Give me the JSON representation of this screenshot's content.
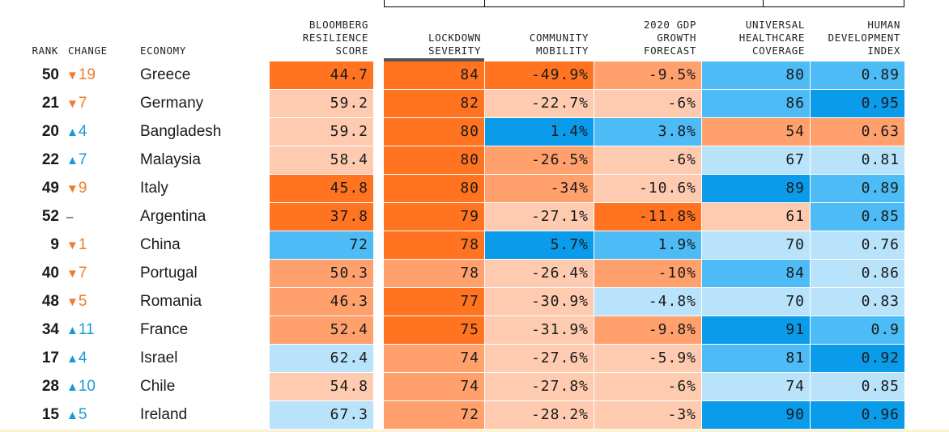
{
  "chart_data": {
    "type": "table",
    "columns": [
      {
        "key": "rank",
        "label": "RANK"
      },
      {
        "key": "change",
        "label": "CHANGE"
      },
      {
        "key": "economy",
        "label": "ECONOMY"
      },
      {
        "key": "score",
        "label": "BLOOMBERG\nRESILIENCE\nSCORE"
      },
      {
        "key": "lockdown",
        "label": "LOCKDOWN\nSEVERITY"
      },
      {
        "key": "mobility",
        "label": "COMMUNITY\nMOBILITY"
      },
      {
        "key": "gdp",
        "label": "2020 GDP\nGROWTH\nFORECAST"
      },
      {
        "key": "health",
        "label": "UNIVERSAL\nHEALTHCARE\nCOVERAGE"
      },
      {
        "key": "hdi",
        "label": "HUMAN\nDEVELOPMENT\nINDEX"
      }
    ],
    "sorted_by": "lockdown",
    "colors": {
      "down": "#ee7d2a",
      "up": "#1a99d8",
      "neg3": "#ff7321",
      "neg2": "#ffa06d",
      "neg1": "#ffcbb0",
      "pos1": "#b8e3fb",
      "pos2": "#4dbbf5",
      "pos3": "#0a9bea"
    },
    "rows": [
      {
        "rank": "50",
        "change_dir": "down",
        "change_sym": "▼",
        "change": "19",
        "economy": "Greece",
        "score": "44.7",
        "lockdown": "84",
        "mobility": "-49.9%",
        "gdp": "-9.5%",
        "health": "80",
        "hdi": "0.89"
      },
      {
        "rank": "21",
        "change_dir": "down",
        "change_sym": "▼",
        "change": "7",
        "economy": "Germany",
        "score": "59.2",
        "lockdown": "82",
        "mobility": "-22.7%",
        "gdp": "-6%",
        "health": "86",
        "hdi": "0.95"
      },
      {
        "rank": "20",
        "change_dir": "up",
        "change_sym": "▲",
        "change": "4",
        "economy": "Bangladesh",
        "score": "59.2",
        "lockdown": "80",
        "mobility": "1.4%",
        "gdp": "3.8%",
        "health": "54",
        "hdi": "0.63"
      },
      {
        "rank": "22",
        "change_dir": "up",
        "change_sym": "▲",
        "change": "7",
        "economy": "Malaysia",
        "score": "58.4",
        "lockdown": "80",
        "mobility": "-26.5%",
        "gdp": "-6%",
        "health": "67",
        "hdi": "0.81"
      },
      {
        "rank": "49",
        "change_dir": "down",
        "change_sym": "▼",
        "change": "9",
        "economy": "Italy",
        "score": "45.8",
        "lockdown": "80",
        "mobility": "-34%",
        "gdp": "-10.6%",
        "health": "89",
        "hdi": "0.89"
      },
      {
        "rank": "52",
        "change_dir": "none",
        "change_sym": "–",
        "change": "",
        "economy": "Argentina",
        "score": "37.8",
        "lockdown": "79",
        "mobility": "-27.1%",
        "gdp": "-11.8%",
        "health": "61",
        "hdi": "0.85"
      },
      {
        "rank": "9",
        "change_dir": "down",
        "change_sym": "▼",
        "change": "1",
        "economy": "China",
        "score": "72",
        "lockdown": "78",
        "mobility": "5.7%",
        "gdp": "1.9%",
        "health": "70",
        "hdi": "0.76"
      },
      {
        "rank": "40",
        "change_dir": "down",
        "change_sym": "▼",
        "change": "7",
        "economy": "Portugal",
        "score": "50.3",
        "lockdown": "78",
        "mobility": "-26.4%",
        "gdp": "-10%",
        "health": "84",
        "hdi": "0.86"
      },
      {
        "rank": "48",
        "change_dir": "down",
        "change_sym": "▼",
        "change": "5",
        "economy": "Romania",
        "score": "46.3",
        "lockdown": "77",
        "mobility": "-30.9%",
        "gdp": "-4.8%",
        "health": "70",
        "hdi": "0.83"
      },
      {
        "rank": "34",
        "change_dir": "up",
        "change_sym": "▲",
        "change": "11",
        "economy": "France",
        "score": "52.4",
        "lockdown": "75",
        "mobility": "-31.9%",
        "gdp": "-9.8%",
        "health": "91",
        "hdi": "0.9"
      },
      {
        "rank": "17",
        "change_dir": "up",
        "change_sym": "▲",
        "change": "4",
        "economy": "Israel",
        "score": "62.4",
        "lockdown": "74",
        "mobility": "-27.6%",
        "gdp": "-5.9%",
        "health": "81",
        "hdi": "0.92"
      },
      {
        "rank": "28",
        "change_dir": "up",
        "change_sym": "▲",
        "change": "10",
        "economy": "Chile",
        "score": "54.8",
        "lockdown": "74",
        "mobility": "-27.8%",
        "gdp": "-6%",
        "health": "74",
        "hdi": "0.85"
      },
      {
        "rank": "15",
        "change_dir": "up",
        "change_sym": "▲",
        "change": "5",
        "economy": "Ireland",
        "score": "67.3",
        "lockdown": "72",
        "mobility": "-28.2%",
        "gdp": "-3%",
        "health": "90",
        "hdi": "0.96"
      }
    ],
    "cell_shades": [
      {
        "score": "neg3",
        "lockdown": "neg3",
        "mobility": "neg3",
        "gdp": "neg2",
        "health": "pos2",
        "hdi": "pos2"
      },
      {
        "score": "neg1",
        "lockdown": "neg3",
        "mobility": "neg1",
        "gdp": "neg1",
        "health": "pos2",
        "hdi": "pos3"
      },
      {
        "score": "neg1",
        "lockdown": "neg3",
        "mobility": "pos3",
        "gdp": "pos2",
        "health": "neg2",
        "hdi": "neg2"
      },
      {
        "score": "neg1",
        "lockdown": "neg3",
        "mobility": "neg2",
        "gdp": "neg1",
        "health": "pos1",
        "hdi": "pos1"
      },
      {
        "score": "neg3",
        "lockdown": "neg3",
        "mobility": "neg2",
        "gdp": "neg1",
        "health": "pos3",
        "hdi": "pos2"
      },
      {
        "score": "neg3",
        "lockdown": "neg3",
        "mobility": "neg1",
        "gdp": "neg3",
        "health": "neg1",
        "hdi": "pos2"
      },
      {
        "score": "pos2",
        "lockdown": "neg3",
        "mobility": "pos3",
        "gdp": "pos2",
        "health": "pos1",
        "hdi": "pos1"
      },
      {
        "score": "neg2",
        "lockdown": "neg2",
        "mobility": "neg1",
        "gdp": "neg2",
        "health": "pos2",
        "hdi": "pos1"
      },
      {
        "score": "neg2",
        "lockdown": "neg3",
        "mobility": "neg1",
        "gdp": "pos1",
        "health": "pos1",
        "hdi": "pos1"
      },
      {
        "score": "neg2",
        "lockdown": "neg3",
        "mobility": "neg1",
        "gdp": "neg2",
        "health": "pos3",
        "hdi": "pos2"
      },
      {
        "score": "pos1",
        "lockdown": "neg2",
        "mobility": "neg1",
        "gdp": "neg1",
        "health": "pos2",
        "hdi": "pos3"
      },
      {
        "score": "neg1",
        "lockdown": "neg2",
        "mobility": "neg1",
        "gdp": "neg1",
        "health": "pos1",
        "hdi": "pos1"
      },
      {
        "score": "pos1",
        "lockdown": "neg2",
        "mobility": "neg1",
        "gdp": "neg1",
        "health": "pos3",
        "hdi": "pos3"
      }
    ]
  }
}
